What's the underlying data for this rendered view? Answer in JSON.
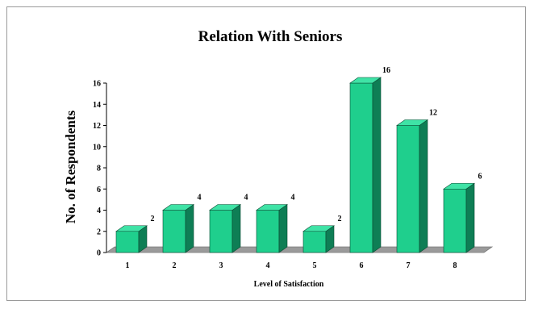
{
  "chart_data": {
    "type": "bar",
    "title": "Relation With Seniors",
    "xlabel": "Level of Satisfaction",
    "ylabel": "No. of Respondents",
    "categories": [
      "1",
      "2",
      "3",
      "4",
      "5",
      "6",
      "7",
      "8"
    ],
    "values": [
      2,
      4,
      4,
      4,
      2,
      16,
      12,
      6
    ],
    "ylim": [
      0,
      16
    ],
    "yticks": [
      "0",
      "2",
      "4",
      "6",
      "8",
      "10",
      "12",
      "14",
      "16"
    ],
    "data_labels": true,
    "bar_style": "3d",
    "colors": {
      "bar_front": "#1fcf8d",
      "bar_top": "#3fe3a6",
      "bar_side": "#0e7e55",
      "floor": "#9a9a9a",
      "floor_edge": "#7a7a7a",
      "frame": "#9a9a9a"
    },
    "grid": false,
    "legend": "none"
  }
}
